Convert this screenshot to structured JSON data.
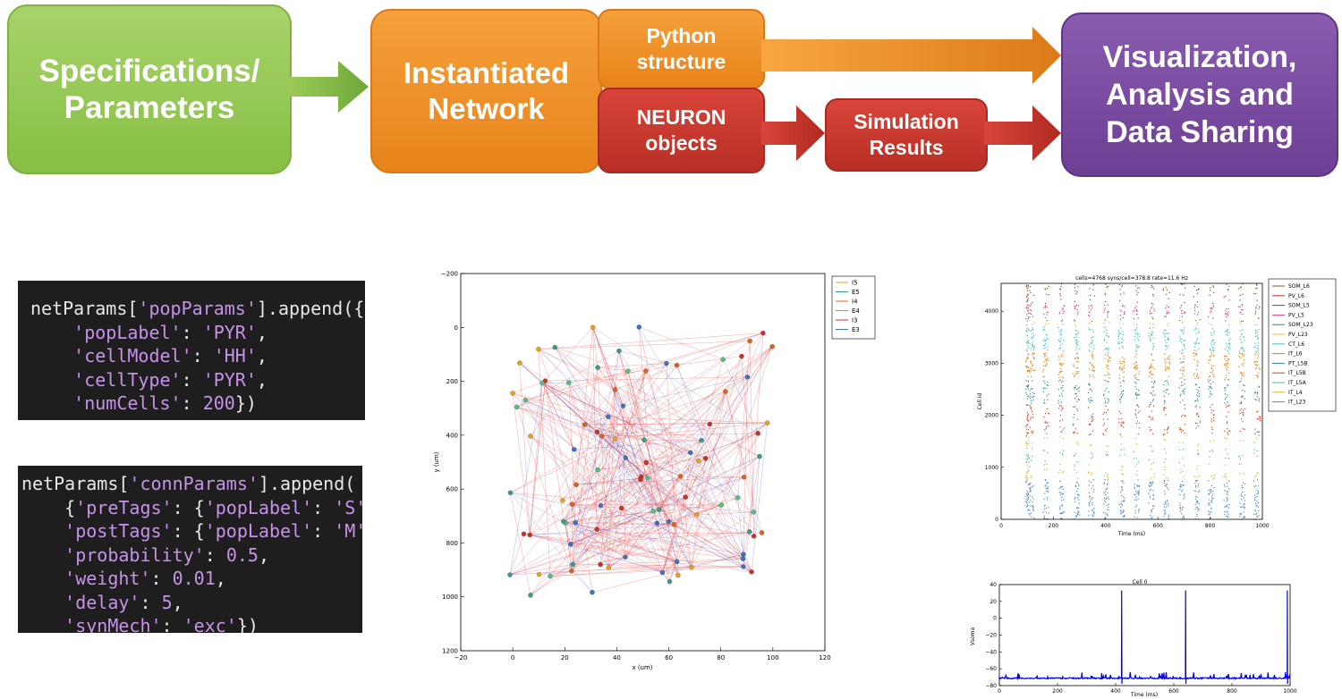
{
  "pipeline": {
    "spec": "Specifications/\nParameters",
    "instantiated": "Instantiated\nNetwork",
    "python": "Python\nstructure",
    "neuron": "NEURON\nobjects",
    "simulation": "Simulation\nResults",
    "visualization": "Visualization,\nAnalysis and\nData Sharing"
  },
  "code1": {
    "l1a": "netParams[",
    "l1s": "'popParams'",
    "l1b": "].append({",
    "l2k": "'popLabel'",
    "l2v": "'PYR'",
    "l3k": "'cellModel'",
    "l3v": "'HH'",
    "l4k": "'cellType'",
    "l4v": "'PYR'",
    "l5k": "'numCells'",
    "l5v": "200"
  },
  "code2": {
    "l1a": "netParams[",
    "l1s": "'connParams'",
    "l1b": "].append(",
    "l2k": "'preTags'",
    "l2k2": "'popLabel'",
    "l2v": "'S'",
    "l3k": "'postTags'",
    "l3k2": "'popLabel'",
    "l3v": "'M'",
    "l4k": "'probability'",
    "l4v": "0.5",
    "l5k": "'weight'",
    "l5v": "0.01",
    "l6k": "'delay'",
    "l6v": "5",
    "l7k": "'synMech'",
    "l7v": "'exc'"
  },
  "network_plot": {
    "x_ticks": [
      "−20",
      "0",
      "20",
      "40",
      "60",
      "80",
      "100",
      "120"
    ],
    "y_ticks": [
      "−200",
      "0",
      "200",
      "400",
      "600",
      "800",
      "1000",
      "1200"
    ],
    "xlabel": "x (um)",
    "ylabel": "y (um)",
    "legend": [
      {
        "name": "I5",
        "color": "#e8a020"
      },
      {
        "name": "E5",
        "color": "#3a9a8a"
      },
      {
        "name": "I4",
        "color": "#e06020"
      },
      {
        "name": "E4",
        "color": "#50c080"
      },
      {
        "name": "I3",
        "color": "#d03020"
      },
      {
        "name": "E3",
        "color": "#4070c0"
      }
    ]
  },
  "raster_plot": {
    "title": "cells=4768 syns/cell=378.8 rate=11.6 Hz",
    "x_ticks": [
      "0",
      "200",
      "400",
      "600",
      "800",
      "1000"
    ],
    "y_ticks": [
      "0",
      "1000",
      "2000",
      "3000",
      "4000"
    ],
    "xlabel": "Time (ms)",
    "ylabel": "Cell id",
    "legend": [
      {
        "name": "SOM_L6",
        "color": "#7a5a20"
      },
      {
        "name": "PV_L6",
        "color": "#c03020"
      },
      {
        "name": "SOM_L5",
        "color": "#3a6a30"
      },
      {
        "name": "PV_L5",
        "color": "#e0408a"
      },
      {
        "name": "SOM_L23",
        "color": "#508040"
      },
      {
        "name": "PV_L23",
        "color": "#e8c020"
      },
      {
        "name": "CT_L6",
        "color": "#40c0c8"
      },
      {
        "name": "IT_L6",
        "color": "#e08010"
      },
      {
        "name": "PT_L5B",
        "color": "#2a8a8a"
      },
      {
        "name": "IT_L5B",
        "color": "#d04020"
      },
      {
        "name": "IT_L5A",
        "color": "#50c080"
      },
      {
        "name": "IT_L4",
        "color": "#e8b020"
      },
      {
        "name": "IT_L23",
        "color": "#4a8ac8"
      }
    ]
  },
  "voltage_plot": {
    "title": "Cell 0",
    "x_ticks": [
      "0",
      "200",
      "400",
      "600",
      "800",
      "1000"
    ],
    "y_ticks": [
      "40",
      "20",
      "0",
      "−20",
      "−40",
      "−60",
      "−80"
    ],
    "xlabel": "Time (ms)",
    "ylabel": "Vsoma",
    "line_color": "#0000ee"
  }
}
